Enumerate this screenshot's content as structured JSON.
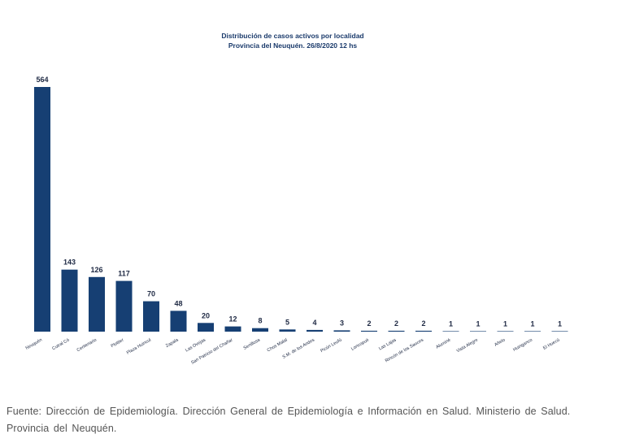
{
  "chart_data": {
    "type": "bar",
    "title": "Distribución de casos activos por localidad",
    "subtitle": "Provincia del Neuquén.  26/8/2020  12  hs",
    "xlabel": "",
    "ylabel": "",
    "ylim": [
      0,
      564
    ],
    "grid": false,
    "legend": "none",
    "categories": [
      "Neuquén",
      "Cutral Có",
      "Centenario",
      "Plottier",
      "Plaza Huincul",
      "Zapala",
      "Las Ovejas",
      "San Patricio del Chañar",
      "Senillosa",
      "Chos Malal",
      "S.M. de los Andes",
      "Picún Leufú",
      "Loncopué",
      "Las Lajas",
      "Rincón de los Sauces",
      "Aluminé",
      "Vista Alegre",
      "Añelo",
      "Huinganco",
      "El Huecú"
    ],
    "values": [
      564,
      143,
      126,
      117,
      70,
      48,
      20,
      12,
      8,
      5,
      4,
      3,
      2,
      2,
      2,
      1,
      1,
      1,
      1,
      1
    ],
    "bar_color": "#163f73"
  },
  "source_note": "Fuente: Dirección de Epidemiología. Dirección General de Epidemiología e Información en Salud. Ministerio de Salud. Provincia del Neuquén."
}
